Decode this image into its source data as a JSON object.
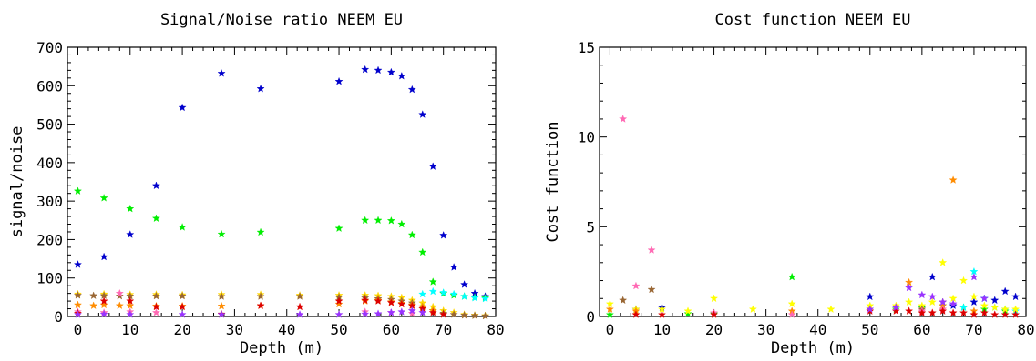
{
  "chart_data": [
    {
      "type": "scatter",
      "title": "Signal/Noise ratio NEEM EU",
      "xlabel": "Depth (m)",
      "ylabel": "signal/noise",
      "xlim": [
        -2,
        80
      ],
      "ylim": [
        0,
        700
      ],
      "xticks": [
        "0",
        "10",
        "20",
        "30",
        "40",
        "50",
        "60",
        "70",
        "80"
      ],
      "yticks": [
        "0",
        "100",
        "200",
        "300",
        "400",
        "500",
        "600",
        "700"
      ],
      "grid": false,
      "marker": "star",
      "series": [
        {
          "color": "#0000cc",
          "x": [
            0,
            5,
            10,
            15,
            20,
            27.5,
            35,
            50,
            55,
            57.5,
            60,
            62,
            64,
            66,
            68,
            70,
            72,
            74,
            76,
            78
          ],
          "y": [
            135,
            155,
            213,
            340,
            543,
            632,
            592,
            611,
            642,
            640,
            635,
            625,
            590,
            525,
            390,
            211,
            128,
            83,
            60,
            52
          ]
        },
        {
          "color": "#00ee00",
          "x": [
            0,
            5,
            10,
            15,
            20,
            27.5,
            35,
            50,
            55,
            57.5,
            60,
            62,
            64,
            66,
            68,
            70,
            72,
            74,
            76,
            78
          ],
          "y": [
            326,
            308,
            280,
            255,
            232,
            214,
            219,
            229,
            250,
            250,
            249,
            240,
            212,
            167,
            90,
            60,
            55,
            52,
            50,
            48
          ]
        },
        {
          "color": "#00ffff",
          "x": [
            66,
            68,
            70,
            72,
            74,
            76,
            78
          ],
          "y": [
            58,
            65,
            62,
            58,
            52,
            48,
            46
          ]
        },
        {
          "color": "#ffd700",
          "x": [
            0,
            5,
            10,
            15,
            20,
            27.5,
            35,
            42.5,
            50,
            55,
            57.5,
            60,
            62,
            64,
            66,
            68,
            70,
            72,
            74,
            76,
            78
          ],
          "y": [
            58,
            58,
            57,
            57,
            56,
            57,
            57,
            55,
            55,
            55,
            54,
            52,
            49,
            42,
            35,
            25,
            15,
            10,
            5,
            3,
            2
          ]
        },
        {
          "color": "#996633",
          "x": [
            0,
            3,
            5,
            8,
            10,
            15,
            20,
            27.5,
            35,
            42.5,
            50,
            55,
            57.5,
            60,
            62,
            64,
            66,
            68,
            70,
            72,
            74,
            76,
            78
          ],
          "y": [
            55,
            54,
            54,
            53,
            53,
            53,
            53,
            52,
            52,
            52,
            50,
            48,
            46,
            44,
            40,
            35,
            25,
            15,
            8,
            5,
            3,
            2,
            1
          ]
        },
        {
          "color": "#ff8c00",
          "x": [
            0,
            3,
            5,
            8,
            10,
            15,
            20,
            27.5,
            35,
            50,
            55,
            57.5,
            60,
            62,
            64,
            66,
            68
          ],
          "y": [
            30,
            28,
            30,
            28,
            28,
            27,
            27,
            27,
            28,
            32,
            40,
            42,
            38,
            34,
            30,
            24,
            15
          ]
        },
        {
          "color": "#ff69b4",
          "x": [
            0,
            5,
            8,
            10,
            15,
            55,
            60,
            64
          ],
          "y": [
            12,
            10,
            60,
            12,
            10,
            12,
            10,
            8
          ]
        },
        {
          "color": "#dd0000",
          "x": [
            0,
            5,
            10,
            15,
            20,
            27.5,
            35,
            42.5,
            50,
            55,
            57.5,
            60,
            62,
            64,
            66,
            68,
            70
          ],
          "y": [
            8,
            40,
            40,
            25,
            25,
            6,
            28,
            25,
            40,
            42,
            40,
            36,
            32,
            28,
            20,
            10,
            5
          ]
        },
        {
          "color": "#9933ff",
          "x": [
            0,
            5,
            10,
            20,
            27.5,
            42.5,
            50,
            55,
            57.5,
            60,
            62,
            64,
            66
          ],
          "y": [
            5,
            6,
            5,
            5,
            5,
            5,
            5,
            6,
            7,
            10,
            12,
            15,
            10
          ]
        }
      ]
    },
    {
      "type": "scatter",
      "title": "Cost function NEEM EU",
      "xlabel": "Depth (m)",
      "ylabel": "Cost function",
      "xlim": [
        -2,
        80
      ],
      "ylim": [
        0,
        15
      ],
      "xticks": [
        "0",
        "10",
        "20",
        "30",
        "40",
        "50",
        "60",
        "70",
        "80"
      ],
      "yticks": [
        "0",
        "5",
        "10",
        "15"
      ],
      "grid": false,
      "marker": "star",
      "series": [
        {
          "color": "#0000cc",
          "x": [
            5,
            10,
            50,
            55,
            60,
            62,
            66,
            70,
            72,
            74,
            76,
            78
          ],
          "y": [
            0.4,
            0.5,
            1.1,
            0.5,
            0.5,
            2.2,
            0.6,
            0.8,
            1.0,
            0.9,
            1.4,
            1.1
          ]
        },
        {
          "color": "#00ee00",
          "x": [
            0,
            15,
            20,
            35,
            55,
            60,
            64,
            68,
            72,
            76
          ],
          "y": [
            0.1,
            0.15,
            0.15,
            2.2,
            0.4,
            0.5,
            0.6,
            0.5,
            0.4,
            0.3
          ]
        },
        {
          "color": "#00ffff",
          "x": [
            68,
            70,
            72,
            74,
            76,
            78
          ],
          "y": [
            0.5,
            2.5,
            1.0,
            0.5,
            0.4,
            0.3
          ]
        },
        {
          "color": "#ffff00",
          "x": [
            0,
            5,
            10,
            15,
            20,
            27.5,
            35,
            42.5,
            50,
            55,
            57.5,
            60,
            62,
            64,
            66,
            68,
            70,
            72,
            74,
            76,
            78
          ],
          "y": [
            0.7,
            0.4,
            0.4,
            0.3,
            1.0,
            0.4,
            0.7,
            0.4,
            0.6,
            0.6,
            0.8,
            0.6,
            0.8,
            3.0,
            1.0,
            2.0,
            1.1,
            0.6,
            0.5,
            0.4,
            0.4
          ]
        },
        {
          "color": "#996633",
          "x": [
            2.5,
            8,
            55,
            60,
            64
          ],
          "y": [
            0.9,
            1.5,
            0.5,
            0.4,
            0.8
          ]
        },
        {
          "color": "#ff8c00",
          "x": [
            0,
            5,
            35,
            57.5,
            64,
            66,
            70
          ],
          "y": [
            0.4,
            0.3,
            0.3,
            1.9,
            0.6,
            7.6,
            0.3
          ]
        },
        {
          "color": "#ff69b4",
          "x": [
            2.5,
            5,
            8,
            20,
            35,
            55,
            60,
            64
          ],
          "y": [
            11.0,
            1.7,
            3.7,
            0.2,
            0.1,
            0.5,
            0.3,
            0.4
          ]
        },
        {
          "color": "#dd0000",
          "x": [
            5,
            10,
            20,
            50,
            55,
            57.5,
            60,
            62,
            64,
            66,
            68,
            70,
            72,
            74,
            76,
            78
          ],
          "y": [
            0.1,
            0.1,
            0.1,
            0.3,
            0.3,
            0.3,
            0.2,
            0.2,
            0.3,
            0.2,
            0.2,
            0.1,
            0.2,
            0.1,
            0.1,
            0.1
          ]
        },
        {
          "color": "#9933ff",
          "x": [
            50,
            55,
            57.5,
            60,
            62,
            64,
            66,
            70,
            72
          ],
          "y": [
            0.4,
            0.5,
            1.6,
            1.2,
            1.1,
            0.8,
            0.7,
            2.2,
            1.0
          ]
        }
      ]
    }
  ]
}
